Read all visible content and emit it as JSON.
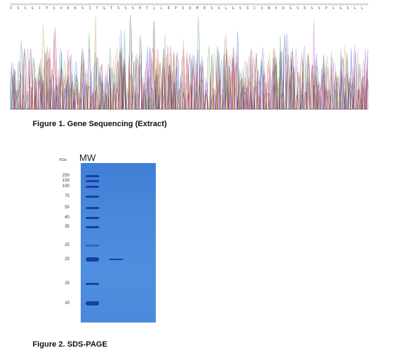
{
  "figure1": {
    "caption": "Figure 1. Gene Sequencing (Extract)",
    "amino_acid_strip": "V S S G C P S V K K S I T G T S S S H T L L R P S D M R S S L G S S C S N V D G S D S S P L G S L L G S S C S L V S S S S P C C"
  },
  "figure2": {
    "caption": "Figure 2. SDS-PAGE",
    "unit_label": "KDa",
    "lane_label": "MW",
    "markers": [
      "250",
      "150",
      "100",
      "70",
      "50",
      "40",
      "35",
      "25",
      "20",
      "15",
      "10"
    ],
    "sample_band_kda": "20",
    "colors": {
      "gel": "#4a88da",
      "band": "#1c3fa8"
    }
  }
}
